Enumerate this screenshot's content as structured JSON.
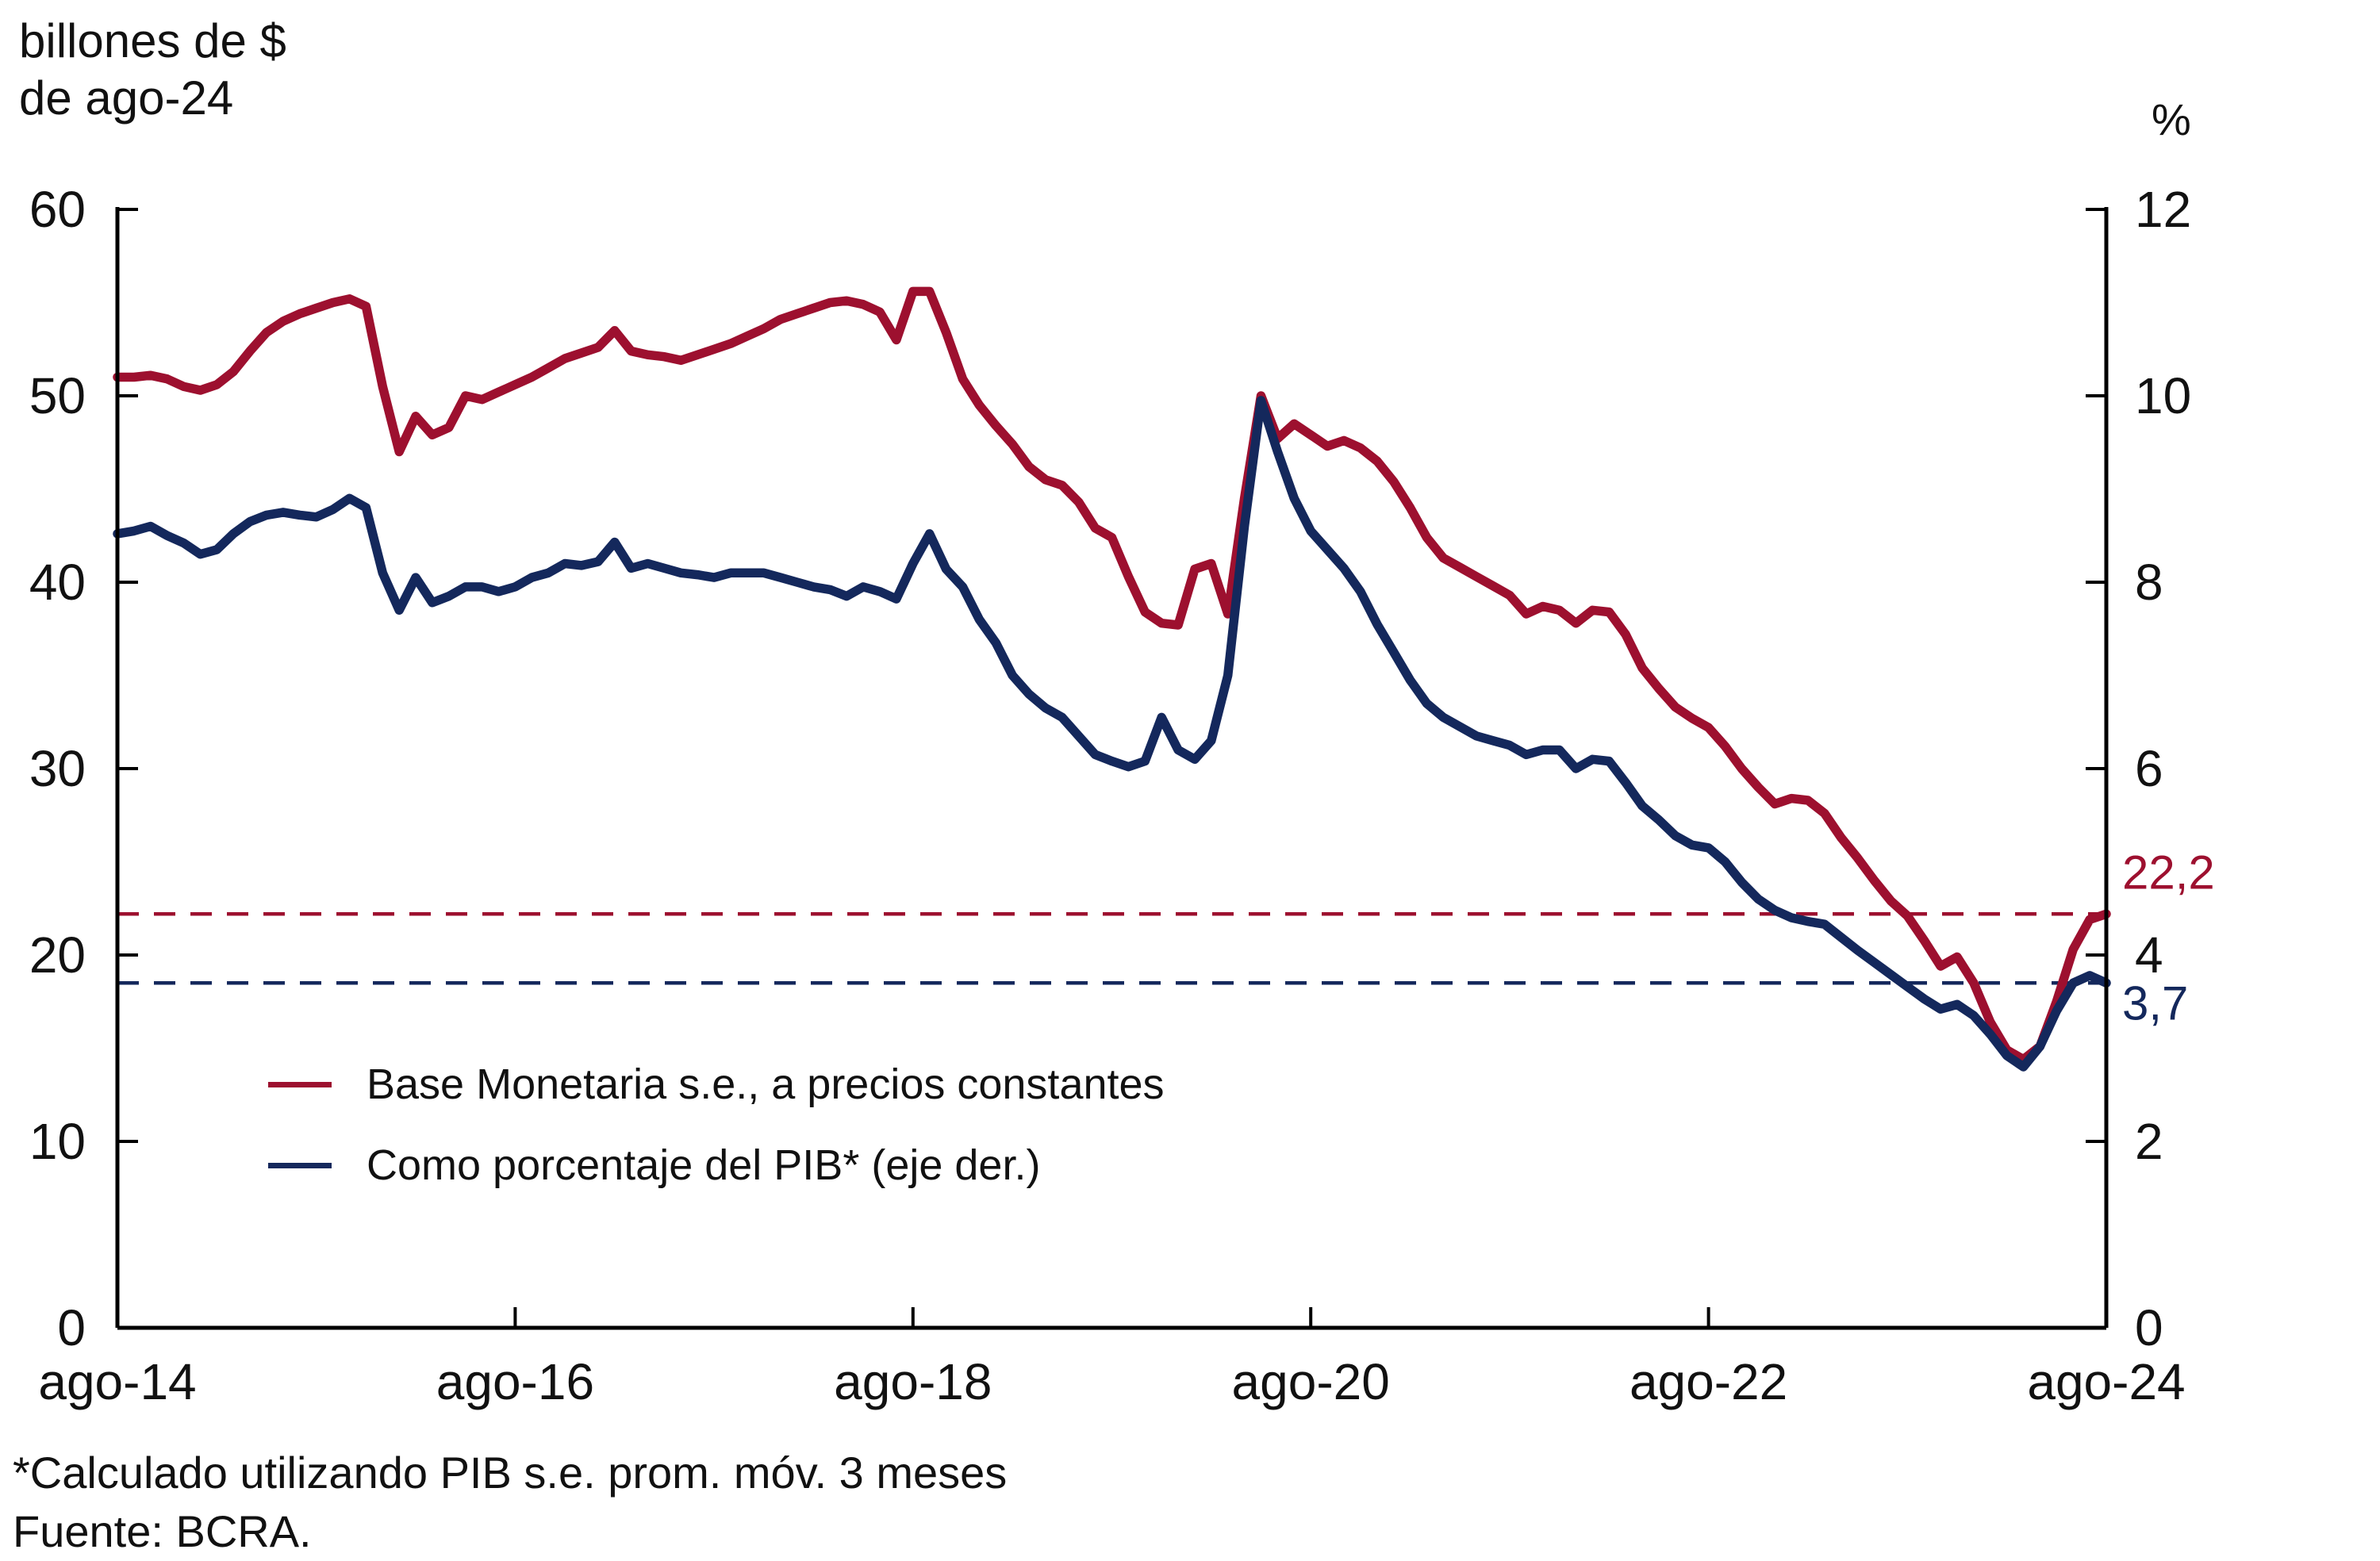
{
  "header": {
    "left_axis_title": "billones de $\n de ago-24",
    "right_axis_title": "%"
  },
  "legend": [
    {
      "id": "base-monetaria",
      "label": "Base Monetaria s.e., a precios constantes",
      "color": "#9D102F"
    },
    {
      "id": "pib-percentage",
      "label": "Como porcentaje del PIB* (eje der.)",
      "color": "#14285C"
    }
  ],
  "footnote": {
    "line1": "*Calculado utilizando PIB s.e. prom. móv. 3 meses",
    "line2": "Fuente: BCRA."
  },
  "colors": {
    "red": "#9D102F",
    "blue": "#14285C",
    "axis": "#000000",
    "text": "#111111"
  },
  "chart_data": {
    "type": "line",
    "title": "",
    "x_range": {
      "start": "ago-14",
      "end": "ago-24",
      "frequency": "monthly",
      "points": 121
    },
    "x_tick_labels": [
      "ago-14",
      "ago-16",
      "ago-18",
      "ago-20",
      "ago-22",
      "ago-24"
    ],
    "x_tick_positions": [
      0,
      24,
      48,
      72,
      96,
      120
    ],
    "left_axis": {
      "label": "billones de $ de ago-24",
      "range": [
        0,
        60
      ],
      "ticks": [
        0,
        10,
        20,
        30,
        40,
        50,
        60
      ]
    },
    "right_axis": {
      "label": "%",
      "range": [
        0,
        12
      ],
      "ticks": [
        0,
        2,
        4,
        6,
        8,
        10,
        12
      ]
    },
    "grid": false,
    "legend_position": "inside-lower-left",
    "series": [
      {
        "id": "base-monetaria",
        "name": "Base Monetaria s.e., a precios constantes",
        "axis": "left",
        "color": "#9D102F",
        "values": [
          51.0,
          51.0,
          51.1,
          50.9,
          50.5,
          50.3,
          50.6,
          51.3,
          52.4,
          53.4,
          54.0,
          54.4,
          54.7,
          55.0,
          55.2,
          54.8,
          50.5,
          47.0,
          48.9,
          47.9,
          48.3,
          50.0,
          49.8,
          50.2,
          50.6,
          51.0,
          51.5,
          52.0,
          52.3,
          52.6,
          53.5,
          52.4,
          52.2,
          52.1,
          51.9,
          52.2,
          52.5,
          52.8,
          53.2,
          53.6,
          54.1,
          54.4,
          54.7,
          55.0,
          55.1,
          54.9,
          54.5,
          53.0,
          55.6,
          55.6,
          53.4,
          50.9,
          49.5,
          48.4,
          47.4,
          46.2,
          45.5,
          45.2,
          44.3,
          42.9,
          42.4,
          40.3,
          38.4,
          37.8,
          37.7,
          40.7,
          41.0,
          38.3,
          44.5,
          50.0,
          47.7,
          48.5,
          47.9,
          47.3,
          47.6,
          47.2,
          46.5,
          45.4,
          44.0,
          42.4,
          41.3,
          40.8,
          40.3,
          39.8,
          39.3,
          38.3,
          38.7,
          38.5,
          37.8,
          38.5,
          38.4,
          37.2,
          35.4,
          34.3,
          33.3,
          32.7,
          32.2,
          31.2,
          30.0,
          29.0,
          28.1,
          28.4,
          28.3,
          27.6,
          26.3,
          25.2,
          24.0,
          22.9,
          22.1,
          20.8,
          19.4,
          19.9,
          18.5,
          16.4,
          14.9,
          14.4,
          15.1,
          17.5,
          20.3,
          21.9,
          22.2
        ]
      },
      {
        "id": "pib-percentage",
        "name": "Como porcentaje del PIB* (eje der.)",
        "axis": "right",
        "color": "#14285C",
        "values": [
          8.52,
          8.55,
          8.6,
          8.5,
          8.42,
          8.3,
          8.35,
          8.52,
          8.65,
          8.72,
          8.75,
          8.72,
          8.7,
          8.78,
          8.9,
          8.8,
          8.1,
          7.7,
          8.05,
          7.78,
          7.85,
          7.95,
          7.95,
          7.9,
          7.95,
          8.05,
          8.1,
          8.2,
          8.18,
          8.22,
          8.43,
          8.15,
          8.2,
          8.15,
          8.1,
          8.08,
          8.05,
          8.1,
          8.1,
          8.1,
          8.05,
          8.0,
          7.95,
          7.92,
          7.85,
          7.95,
          7.9,
          7.82,
          8.2,
          8.52,
          8.14,
          7.95,
          7.6,
          7.35,
          7.0,
          6.8,
          6.65,
          6.55,
          6.35,
          6.15,
          6.08,
          6.02,
          6.08,
          6.55,
          6.2,
          6.1,
          6.3,
          7.0,
          8.6,
          9.95,
          9.4,
          8.9,
          8.55,
          8.35,
          8.15,
          7.9,
          7.55,
          7.25,
          6.95,
          6.7,
          6.55,
          6.45,
          6.35,
          6.3,
          6.25,
          6.15,
          6.2,
          6.2,
          6.0,
          6.1,
          6.08,
          5.85,
          5.6,
          5.45,
          5.28,
          5.18,
          5.15,
          5.0,
          4.78,
          4.6,
          4.48,
          4.4,
          4.36,
          4.33,
          4.19,
          4.05,
          3.92,
          3.79,
          3.66,
          3.53,
          3.42,
          3.47,
          3.35,
          3.15,
          2.92,
          2.8,
          3.02,
          3.4,
          3.7,
          3.78,
          3.7
        ]
      }
    ],
    "reference_lines": [
      {
        "id": "red-dashed",
        "axis": "left",
        "value": 22.2,
        "label": "22,2",
        "color": "#9D102F",
        "style": "dashed",
        "label_dy": -32
      },
      {
        "id": "blue-dashed",
        "axis": "right",
        "value": 3.7,
        "label": "3,7",
        "color": "#14285C",
        "style": "dashed",
        "label_dy": 46
      }
    ]
  }
}
